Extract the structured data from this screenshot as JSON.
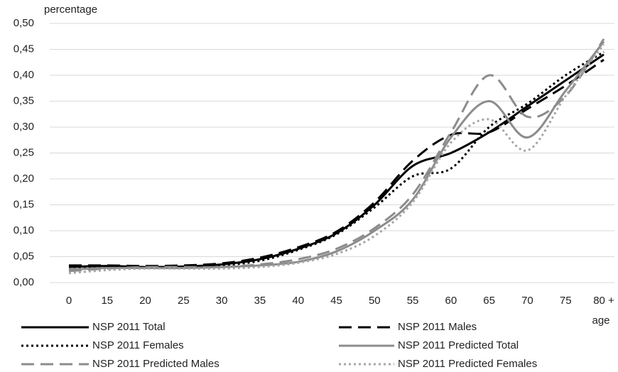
{
  "chart_data": {
    "type": "line",
    "y_label": "percentage",
    "x_label": "age",
    "categories": [
      "0",
      "15",
      "20",
      "25",
      "30",
      "35",
      "40",
      "45",
      "50",
      "55",
      "60",
      "65",
      "70",
      "75",
      "80 +"
    ],
    "series": [
      {
        "name": "NSP 2011 Total",
        "color": "#000000",
        "dash": "solid",
        "values": [
          0.03,
          0.032,
          0.03,
          0.031,
          0.035,
          0.045,
          0.065,
          0.095,
          0.15,
          0.225,
          0.25,
          0.29,
          0.34,
          0.39,
          0.44
        ]
      },
      {
        "name": "NSP 2011 Males",
        "color": "#000000",
        "dash": "dashed",
        "values": [
          0.033,
          0.033,
          0.032,
          0.033,
          0.037,
          0.048,
          0.068,
          0.098,
          0.155,
          0.235,
          0.285,
          0.29,
          0.335,
          0.38,
          0.43
        ]
      },
      {
        "name": "NSP 2011 Females",
        "color": "#000000",
        "dash": "dotted",
        "values": [
          0.025,
          0.03,
          0.028,
          0.029,
          0.033,
          0.042,
          0.063,
          0.093,
          0.145,
          0.205,
          0.22,
          0.3,
          0.345,
          0.4,
          0.445
        ]
      },
      {
        "name": "NSP 2011 Predicted Total",
        "color": "#8c8c8c",
        "dash": "solid",
        "values": [
          0.025,
          0.028,
          0.028,
          0.028,
          0.03,
          0.033,
          0.04,
          0.06,
          0.1,
          0.16,
          0.28,
          0.35,
          0.28,
          0.37,
          0.465
        ]
      },
      {
        "name": "NSP 2011 Predicted Males",
        "color": "#8c8c8c",
        "dash": "dashed",
        "values": [
          0.022,
          0.027,
          0.03,
          0.03,
          0.03,
          0.035,
          0.045,
          0.065,
          0.105,
          0.17,
          0.29,
          0.4,
          0.32,
          0.36,
          0.47
        ]
      },
      {
        "name": "NSP 2011 Predicted Females",
        "color": "#a6a6a6",
        "dash": "dotted",
        "values": [
          0.018,
          0.024,
          0.027,
          0.027,
          0.027,
          0.03,
          0.038,
          0.055,
          0.09,
          0.155,
          0.27,
          0.315,
          0.255,
          0.36,
          0.46
        ]
      }
    ],
    "ylim": [
      0,
      0.5
    ],
    "yticks": [
      {
        "value": 0,
        "label": "0,00"
      },
      {
        "value": 0.05,
        "label": "0,05"
      },
      {
        "value": 0.1,
        "label": "0,10"
      },
      {
        "value": 0.15,
        "label": "0,15"
      },
      {
        "value": 0.2,
        "label": "0,20"
      },
      {
        "value": 0.25,
        "label": "0,25"
      },
      {
        "value": 0.3,
        "label": "0,30"
      },
      {
        "value": 0.35,
        "label": "0,35"
      },
      {
        "value": 0.4,
        "label": "0,40"
      },
      {
        "value": 0.45,
        "label": "0,45"
      },
      {
        "value": 0.5,
        "label": "0,50"
      }
    ],
    "grid": true,
    "legend": "bottom"
  }
}
